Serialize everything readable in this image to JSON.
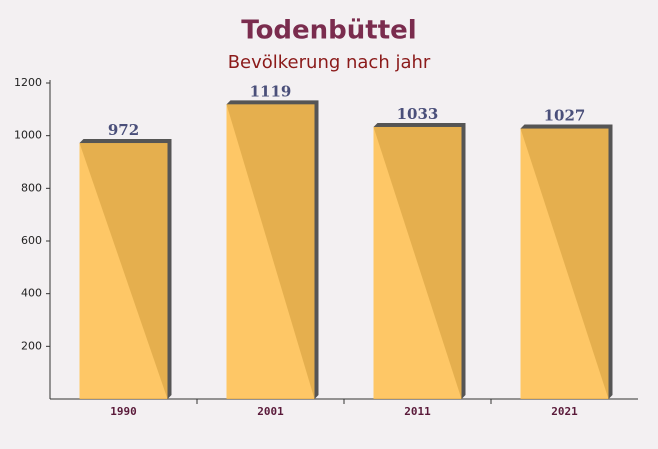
{
  "chart_data": {
    "type": "bar",
    "title": "Todenbüttel",
    "subtitle": "Bevölkerung nach jahr",
    "categories": [
      "1990",
      "2001",
      "2011",
      "2021"
    ],
    "values": [
      972,
      1119,
      1033,
      1027
    ],
    "color": "#ffc04d",
    "ylim": [
      0,
      1200
    ],
    "yticks": [
      200,
      400,
      600,
      800,
      1000,
      1200
    ],
    "grid": false
  }
}
